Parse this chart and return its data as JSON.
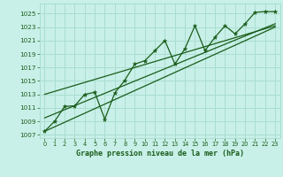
{
  "title": "Graphe pression niveau de la mer (hPa)",
  "bg_color": "#c8f0e8",
  "grid_color": "#aaddd0",
  "line_color": "#1a5c1a",
  "ylim": [
    1006.5,
    1026.5
  ],
  "xlim": [
    -0.5,
    23.5
  ],
  "yticks": [
    1007,
    1009,
    1011,
    1013,
    1015,
    1017,
    1019,
    1021,
    1023,
    1025
  ],
  "xticks": [
    0,
    1,
    2,
    3,
    4,
    5,
    6,
    7,
    8,
    9,
    10,
    11,
    12,
    13,
    14,
    15,
    16,
    17,
    18,
    19,
    20,
    21,
    22,
    23
  ],
  "pressure_data": [
    1007.5,
    1009.0,
    1011.2,
    1011.3,
    1013.0,
    1013.3,
    1009.3,
    1013.2,
    1015.1,
    1017.5,
    1018.0,
    1019.5,
    1021.0,
    1017.5,
    1019.8,
    1023.2,
    1019.5,
    1021.5,
    1023.2,
    1022.0,
    1023.5,
    1025.2,
    1025.3,
    1025.3
  ],
  "trend_line1": [
    1007.5,
    1023.0
  ],
  "trend_line2": [
    1009.5,
    1023.5
  ],
  "trend_line3": [
    1013.0,
    1023.2
  ],
  "trend_x": [
    0,
    23
  ]
}
